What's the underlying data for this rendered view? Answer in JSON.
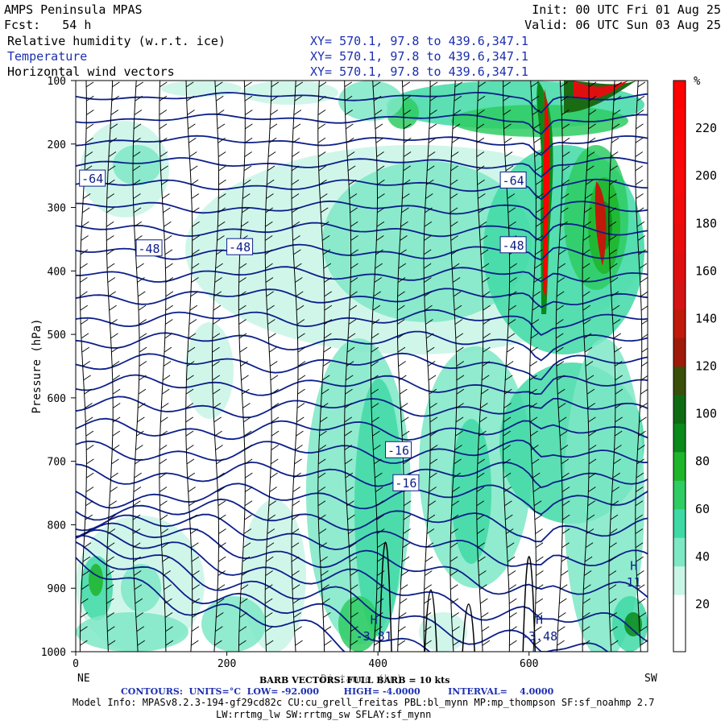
{
  "header": {
    "model": "AMPS Peninsula MPAS",
    "fcst": "Fcst:   54 h",
    "init": "Init: 00 UTC Fri 01 Aug 25",
    "valid": "Valid: 06 UTC Sun 03 Aug 25",
    "fields": [
      {
        "label": "Relative humidity (w.r.t. ice)",
        "xy": "XY= 570.1, 97.8 to 439.6,347.1",
        "color": "#000000"
      },
      {
        "label": "Temperature",
        "xy": "XY= 570.1, 97.8 to 439.6,347.1",
        "color": "#1c2fb0"
      },
      {
        "label": "Horizontal wind vectors",
        "xy": "XY= 570.1, 97.8 to 439.6,347.1",
        "color": "#000000"
      }
    ]
  },
  "chart_data": {
    "type": "heatmap",
    "xlabel": "Distance (km)",
    "ylabel": "Pressure (hPa)",
    "x_ticks": [
      0,
      200,
      400,
      600
    ],
    "xlim": [
      0,
      757
    ],
    "y_ticks": [
      100,
      200,
      300,
      400,
      500,
      600,
      700,
      800,
      900,
      1000
    ],
    "ylim": [
      1000,
      100
    ],
    "left_end_label": "NE",
    "right_end_label": "SW",
    "colorbar": {
      "unit": "%",
      "ticks": [
        20,
        40,
        60,
        80,
        100,
        120,
        140,
        160,
        180,
        200,
        220
      ],
      "colors": [
        "#ffffff",
        "#ffffff",
        "#c8f5e6",
        "#7ee8c5",
        "#3fd9a6",
        "#2ecc63",
        "#1fb52a",
        "#0a8a1a",
        "#0f6b12",
        "#3a4f0a",
        "#a01a0a",
        "#c01a0a",
        "#d41414",
        "#e00f0f",
        "#ea0c0c",
        "#f20a0a",
        "#f80808",
        "#fb0606",
        "#fd0404",
        "#ff0000"
      ]
    },
    "temperature_contours": {
      "units": "°C",
      "low": -92.0,
      "high": -4.0,
      "interval": 4.0,
      "labels": [
        {
          "text": "-64",
          "x": 5,
          "p": 255
        },
        {
          "text": "-48",
          "x": 80,
          "p": 365
        },
        {
          "text": "-48",
          "x": 200,
          "p": 363
        },
        {
          "text": "-64",
          "x": 562,
          "p": 258
        },
        {
          "text": "-48",
          "x": 562,
          "p": 360
        },
        {
          "text": "-16",
          "x": 410,
          "p": 683
        },
        {
          "text": "-16",
          "x": 420,
          "p": 735
        },
        {
          "text": "H",
          "x": 384,
          "p": 950
        },
        {
          "text": "-3.81",
          "x": 384,
          "p": 976
        },
        {
          "text": "H",
          "x": 603,
          "p": 950
        },
        {
          "text": "-3.48",
          "x": 603,
          "p": 976
        },
        {
          "text": "H",
          "x": 728,
          "p": 865
        },
        {
          "text": "11",
          "x": 728,
          "p": 891
        }
      ]
    },
    "wind_barb_columns_km": [
      10,
      45,
      80,
      115,
      150,
      185,
      220,
      255,
      290,
      325,
      360,
      395,
      430,
      465,
      500,
      535,
      570,
      605,
      640,
      675,
      710,
      745
    ]
  },
  "footer": {
    "barb_note": "BARB VECTORS: FULL BARB = 10 kts",
    "contours": "CONTOURS:  UNITS=°C  LOW= -92.000        HIGH= -4.0000         INTERVAL=    4.0000",
    "model_info": "Model Info: MPASv8.2.3-194-gf29cd82c CU:cu_grell_freitas PBL:bl_mynn MP:mp_thompson SF:sf_noahmp 2.7",
    "model_info2": "LW:rrtmg_lw SW:rrtmg_sw SFLAY:sf_mynn"
  }
}
